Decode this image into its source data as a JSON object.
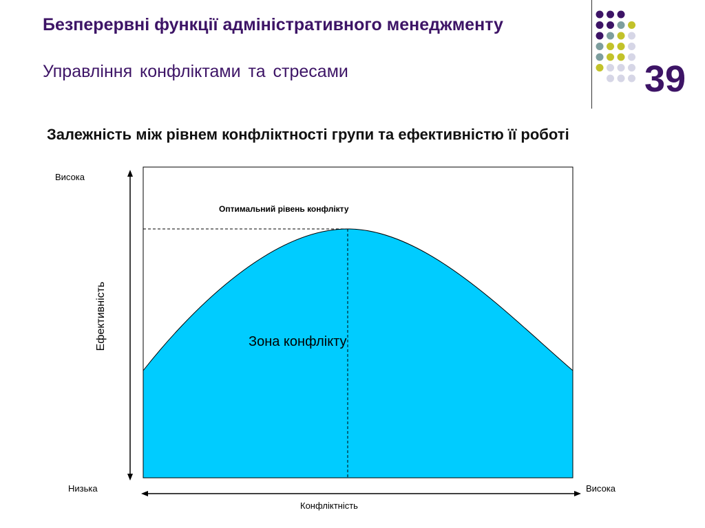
{
  "slide": {
    "title": "Безперервні функції адміністративного менеджменту",
    "subtitle": "Управління конфліктами та стресами",
    "number": "39"
  },
  "decoration": {
    "dot_colors": [
      "#3d1466",
      "#7d9e9e",
      "#c2c22a",
      "#d6d6e6"
    ]
  },
  "diagram": {
    "heading": "Залежність між рівнем конфліктності групи та ефективністю її роботі",
    "y_axis_label": "Ефективність",
    "y_high_label": "Висока",
    "x_low_label": "Низька",
    "x_high_label": "Висока",
    "x_axis_label": "Конфліктність",
    "optimal_label": "Оптимальний рівень конфлікту",
    "zone_label": "Зона конфлікту",
    "fill_color": "#00ccff"
  }
}
